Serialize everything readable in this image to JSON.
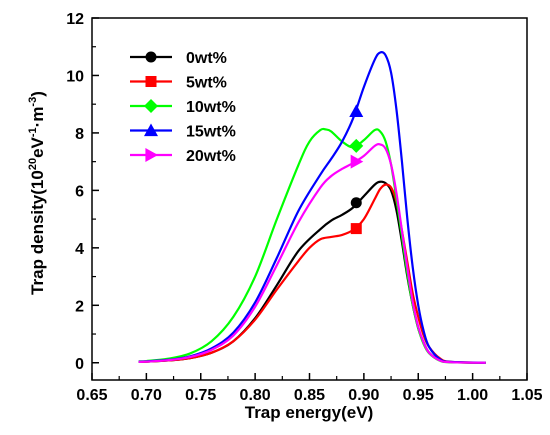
{
  "chart_data": {
    "type": "line",
    "xlabel": "Trap energy(eV)",
    "ylabel_main": "Trap density(10",
    "ylabel_exp1": "20",
    "ylabel_mid": "eV",
    "ylabel_exp2": "-1",
    "ylabel_tail": "·m",
    "ylabel_exp3": "-3",
    "ylabel_close": ")",
    "xlim": [
      0.65,
      1.05
    ],
    "ylim": [
      -0.6,
      12
    ],
    "x_ticks": [
      0.65,
      0.7,
      0.75,
      0.8,
      0.85,
      0.9,
      0.95,
      1.0,
      1.05
    ],
    "x_tick_labels": [
      "0.65",
      "0.70",
      "0.75",
      "0.80",
      "0.85",
      "0.90",
      "0.95",
      "1.00",
      "1.05"
    ],
    "y_ticks": [
      0,
      2,
      4,
      6,
      8,
      10,
      12
    ],
    "y_tick_labels": [
      "0",
      "2",
      "4",
      "6",
      "8",
      "10",
      "12"
    ],
    "legend_position": "top-left",
    "series": [
      {
        "name": "0wt%",
        "color": "#000000",
        "marker": "circle",
        "marker_point": [
          0.893,
          5.57
        ],
        "points": [
          [
            0.693,
            0.03
          ],
          [
            0.7,
            0.04
          ],
          [
            0.72,
            0.08
          ],
          [
            0.74,
            0.16
          ],
          [
            0.76,
            0.35
          ],
          [
            0.78,
            0.75
          ],
          [
            0.8,
            1.55
          ],
          [
            0.82,
            2.7
          ],
          [
            0.84,
            3.9
          ],
          [
            0.86,
            4.65
          ],
          [
            0.87,
            4.95
          ],
          [
            0.88,
            5.15
          ],
          [
            0.89,
            5.4
          ],
          [
            0.9,
            5.8
          ],
          [
            0.91,
            6.2
          ],
          [
            0.915,
            6.3
          ],
          [
            0.92,
            6.25
          ],
          [
            0.925,
            6.0
          ],
          [
            0.93,
            5.3
          ],
          [
            0.935,
            4.2
          ],
          [
            0.94,
            3.0
          ],
          [
            0.945,
            2.0
          ],
          [
            0.95,
            1.2
          ],
          [
            0.955,
            0.7
          ],
          [
            0.96,
            0.35
          ],
          [
            0.97,
            0.08
          ],
          [
            0.98,
            0.02
          ],
          [
            1.012,
            0.0
          ]
        ]
      },
      {
        "name": "5wt%",
        "color": "#ff0000",
        "marker": "square",
        "marker_point": [
          0.893,
          4.67
        ],
        "points": [
          [
            0.693,
            0.03
          ],
          [
            0.7,
            0.04
          ],
          [
            0.72,
            0.08
          ],
          [
            0.74,
            0.16
          ],
          [
            0.76,
            0.35
          ],
          [
            0.78,
            0.75
          ],
          [
            0.8,
            1.5
          ],
          [
            0.82,
            2.55
          ],
          [
            0.84,
            3.55
          ],
          [
            0.85,
            4.0
          ],
          [
            0.86,
            4.3
          ],
          [
            0.87,
            4.38
          ],
          [
            0.88,
            4.45
          ],
          [
            0.89,
            4.62
          ],
          [
            0.9,
            5.0
          ],
          [
            0.91,
            5.7
          ],
          [
            0.915,
            6.05
          ],
          [
            0.92,
            6.2
          ],
          [
            0.925,
            6.1
          ],
          [
            0.93,
            5.6
          ],
          [
            0.935,
            4.6
          ],
          [
            0.94,
            3.5
          ],
          [
            0.945,
            2.4
          ],
          [
            0.95,
            1.6
          ],
          [
            0.955,
            0.95
          ],
          [
            0.96,
            0.55
          ],
          [
            0.97,
            0.15
          ],
          [
            0.98,
            0.03
          ],
          [
            1.012,
            0.0
          ]
        ]
      },
      {
        "name": "10wt%",
        "color": "#00ff00",
        "marker": "diamond",
        "marker_point": [
          0.893,
          7.55
        ],
        "points": [
          [
            0.693,
            0.05
          ],
          [
            0.7,
            0.06
          ],
          [
            0.72,
            0.14
          ],
          [
            0.74,
            0.32
          ],
          [
            0.76,
            0.75
          ],
          [
            0.78,
            1.6
          ],
          [
            0.8,
            3.0
          ],
          [
            0.82,
            5.0
          ],
          [
            0.84,
            6.9
          ],
          [
            0.85,
            7.7
          ],
          [
            0.86,
            8.1
          ],
          [
            0.865,
            8.12
          ],
          [
            0.87,
            8.05
          ],
          [
            0.88,
            7.7
          ],
          [
            0.89,
            7.5
          ],
          [
            0.9,
            7.75
          ],
          [
            0.91,
            8.1
          ],
          [
            0.915,
            8.05
          ],
          [
            0.92,
            7.7
          ],
          [
            0.925,
            6.9
          ],
          [
            0.93,
            5.7
          ],
          [
            0.935,
            4.4
          ],
          [
            0.94,
            3.1
          ],
          [
            0.945,
            2.0
          ],
          [
            0.95,
            1.2
          ],
          [
            0.955,
            0.65
          ],
          [
            0.96,
            0.33
          ],
          [
            0.97,
            0.07
          ],
          [
            0.98,
            0.02
          ],
          [
            1.012,
            0.0
          ]
        ]
      },
      {
        "name": "15wt%",
        "color": "#0000ff",
        "marker": "triangle-up",
        "marker_point": [
          0.893,
          8.75
        ],
        "points": [
          [
            0.693,
            0.04
          ],
          [
            0.7,
            0.05
          ],
          [
            0.72,
            0.1
          ],
          [
            0.74,
            0.22
          ],
          [
            0.76,
            0.5
          ],
          [
            0.78,
            1.05
          ],
          [
            0.8,
            2.1
          ],
          [
            0.82,
            3.65
          ],
          [
            0.84,
            5.3
          ],
          [
            0.86,
            6.55
          ],
          [
            0.87,
            7.1
          ],
          [
            0.88,
            7.7
          ],
          [
            0.89,
            8.5
          ],
          [
            0.9,
            9.6
          ],
          [
            0.91,
            10.55
          ],
          [
            0.915,
            10.8
          ],
          [
            0.92,
            10.7
          ],
          [
            0.925,
            10.1
          ],
          [
            0.93,
            8.8
          ],
          [
            0.935,
            7.0
          ],
          [
            0.94,
            5.0
          ],
          [
            0.945,
            3.3
          ],
          [
            0.95,
            2.0
          ],
          [
            0.955,
            1.1
          ],
          [
            0.96,
            0.55
          ],
          [
            0.97,
            0.12
          ],
          [
            0.98,
            0.03
          ],
          [
            1.012,
            0.0
          ]
        ]
      },
      {
        "name": "20wt%",
        "color": "#ff00ff",
        "marker": "triangle-right",
        "marker_point": [
          0.893,
          7.0
        ],
        "points": [
          [
            0.693,
            0.03
          ],
          [
            0.7,
            0.04
          ],
          [
            0.72,
            0.09
          ],
          [
            0.74,
            0.2
          ],
          [
            0.76,
            0.45
          ],
          [
            0.78,
            0.95
          ],
          [
            0.8,
            1.95
          ],
          [
            0.82,
            3.4
          ],
          [
            0.84,
            4.9
          ],
          [
            0.86,
            6.1
          ],
          [
            0.87,
            6.5
          ],
          [
            0.88,
            6.75
          ],
          [
            0.89,
            6.95
          ],
          [
            0.9,
            7.2
          ],
          [
            0.91,
            7.55
          ],
          [
            0.915,
            7.6
          ],
          [
            0.92,
            7.45
          ],
          [
            0.925,
            6.9
          ],
          [
            0.93,
            5.9
          ],
          [
            0.935,
            4.6
          ],
          [
            0.94,
            3.3
          ],
          [
            0.945,
            2.1
          ],
          [
            0.95,
            1.25
          ],
          [
            0.955,
            0.7
          ],
          [
            0.96,
            0.35
          ],
          [
            0.97,
            0.08
          ],
          [
            0.98,
            0.02
          ],
          [
            1.012,
            0.0
          ]
        ]
      }
    ]
  }
}
